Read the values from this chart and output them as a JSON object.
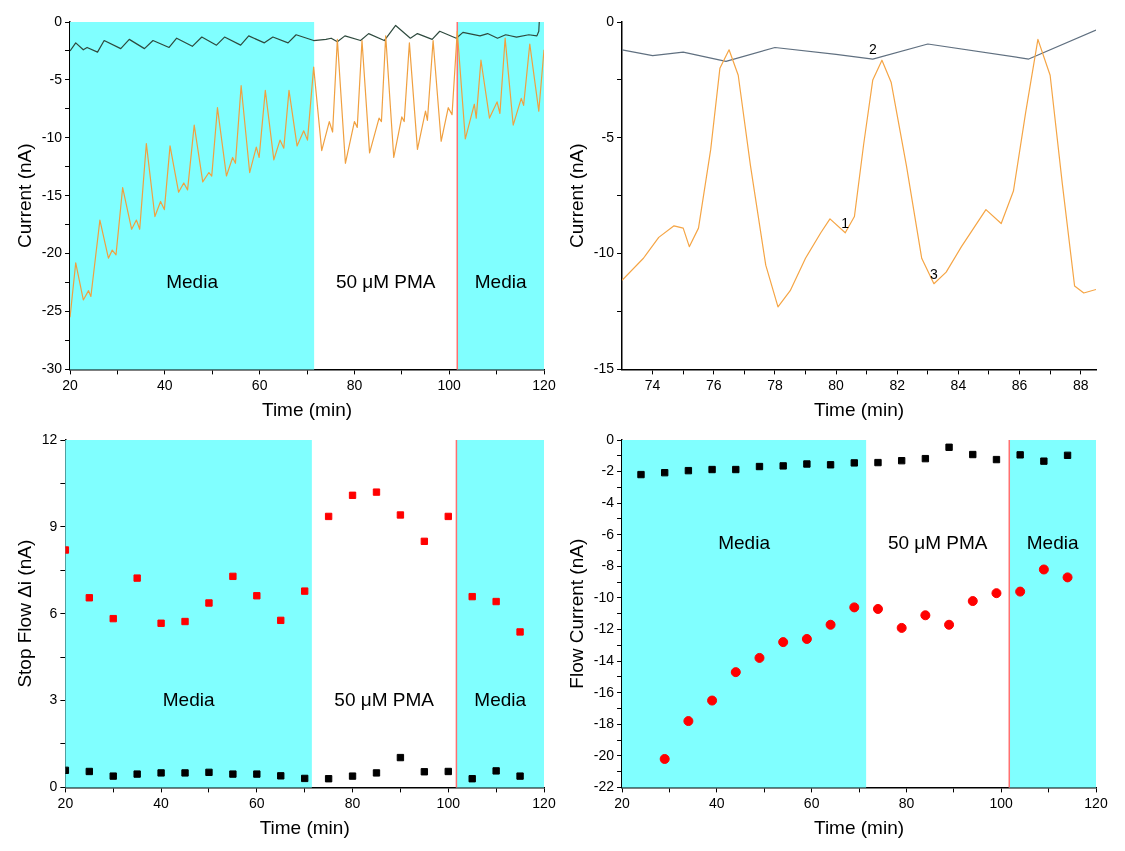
{
  "chart_data": [
    {
      "type": "line",
      "xlabel": "Time (min)",
      "ylabel": "Current (nA)",
      "xlim": [
        20,
        120
      ],
      "ylim": [
        -30,
        0
      ],
      "xticks": [
        20,
        {
          "value": 30,
          "label": null
        },
        40,
        {
          "value": 50,
          "label": null
        },
        60,
        {
          "value": 70,
          "label": null
        },
        80,
        {
          "value": 90,
          "label": null
        },
        100,
        {
          "value": 110,
          "label": null
        },
        120
      ],
      "yticks": [
        -30,
        {
          "value": -27.5,
          "label": null
        },
        -25,
        {
          "value": -22.5,
          "label": null
        },
        -20,
        {
          "value": -17.5,
          "label": null
        },
        -15,
        {
          "value": -12.5,
          "label": null
        },
        -10,
        {
          "value": -7.5,
          "label": null
        },
        -5,
        {
          "value": -2.5,
          "label": null
        },
        0
      ],
      "grid": false,
      "legend": false,
      "marker": "none",
      "line_style": "solid",
      "bands": [
        {
          "axis": "x",
          "from": 20,
          "to": 71.5,
          "color": "#80ffff",
          "label": "Media"
        },
        {
          "axis": "x",
          "from": 101.7,
          "to": 120,
          "color": "#80ffff",
          "label": "Media"
        }
      ],
      "ref_lines": [
        {
          "axis": "x",
          "value": 101.7,
          "color": "#ff7070"
        }
      ],
      "annotations": [
        "50 μM PMA"
      ],
      "series": [
        {
          "color": "#f0a040",
          "x": [
            20,
            21.2,
            22.8,
            23.9,
            24.4,
            26.3,
            28.1,
            28.9,
            29.7,
            31.1,
            33,
            34,
            34.7,
            36.1,
            37.9,
            39.1,
            39.9,
            41.1,
            42.9,
            44,
            44.8,
            46.2,
            48,
            49.3,
            49.9,
            51.1,
            53,
            54.3,
            54.9,
            56.1,
            57.9,
            59.3,
            59.9,
            61.2,
            63,
            64.3,
            65.1,
            66.2,
            67.9,
            69.3,
            70.1,
            71.4,
            73.1,
            74.7,
            75.4,
            76.4,
            78.1,
            80,
            80.6,
            81.6,
            83.2,
            85.2,
            85.7,
            86.6,
            88.3,
            90,
            90.5,
            91.6,
            93.3,
            95,
            95.4,
            96.6,
            98.3,
            99.8,
            100.6,
            101.7,
            103.4,
            105.3,
            105.7,
            106.7,
            108.5,
            110.1,
            110.7,
            111.8,
            113.5,
            115.2,
            115.7,
            117,
            118.9,
            120
          ],
          "values": [
            -25.5,
            -20.8,
            -24,
            -23.2,
            -23.7,
            -17.1,
            -20.4,
            -19.7,
            -20.1,
            -14.3,
            -17.9,
            -17.1,
            -17.9,
            -10.5,
            -16.8,
            -15.5,
            -16.2,
            -10.7,
            -14.7,
            -13.9,
            -14.5,
            -8.9,
            -13.8,
            -13,
            -13.3,
            -7.4,
            -13.3,
            -11.7,
            -12.2,
            -5.5,
            -13,
            -10.8,
            -11.7,
            -5.9,
            -11.9,
            -10.2,
            -10.9,
            -5.9,
            -10.7,
            -9.4,
            -10.2,
            -3.9,
            -11.1,
            -8.6,
            -9.5,
            -1.5,
            -12.2,
            -8.6,
            -9.1,
            -1.6,
            -11.3,
            -8.3,
            -8.6,
            -1.2,
            -11.7,
            -8.2,
            -8.6,
            -1.8,
            -11,
            -7.7,
            -8.5,
            -1.6,
            -10.3,
            -7.4,
            -8,
            -0.8,
            -10.1,
            -7.1,
            -8.3,
            -3.3,
            -8.3,
            -6.9,
            -7.9,
            -1.4,
            -8.9,
            -6.6,
            -7.2,
            -1.9,
            -7.7,
            -2.4
          ]
        },
        {
          "color": "#2e4a3e",
          "x": [
            20,
            21.2,
            22.8,
            23.6,
            25.8,
            27.2,
            30.7,
            32.5,
            35.7,
            37.5,
            40.9,
            42.5,
            45.8,
            47.8,
            50.9,
            52.6,
            56,
            57.7,
            61,
            62.8,
            66,
            67.7,
            71.4,
            74,
            75.1,
            76.4,
            78,
            81.3,
            83,
            86.3,
            88.7,
            91.8,
            93.3,
            96.4,
            98,
            101.5,
            102.9,
            106.5,
            108.1,
            110.2,
            111.9,
            114.2,
            116.8,
            118.5,
            118.9,
            119
          ],
          "values": [
            -2.5,
            -1.8,
            -2.4,
            -2.2,
            -2.6,
            -1.6,
            -2.3,
            -1.5,
            -2.3,
            -1.6,
            -2.2,
            -1.4,
            -2.1,
            -1.3,
            -2,
            -1.3,
            -2,
            -1.2,
            -1.8,
            -1.3,
            -1.8,
            -1.1,
            -1.6,
            -1.5,
            -1.4,
            -1.7,
            -1.2,
            -1.6,
            -1,
            -1.6,
            -0.3,
            -1.4,
            -1,
            -1.5,
            -0.8,
            -1.4,
            -0.9,
            -1.2,
            -1,
            -1.4,
            -1.1,
            -1.3,
            -1.1,
            -1.2,
            -0.8,
            0
          ]
        }
      ]
    },
    {
      "type": "line",
      "xlabel": "Time (min)",
      "ylabel": "Current (nA)",
      "xlim": [
        73,
        88.5
      ],
      "ylim": [
        -15,
        0
      ],
      "xticks": [
        74,
        {
          "value": 75,
          "label": null
        },
        76,
        {
          "value": 77,
          "label": null
        },
        78,
        {
          "value": 79,
          "label": null
        },
        80,
        {
          "value": 81,
          "label": null
        },
        82,
        {
          "value": 83,
          "label": null
        },
        84,
        {
          "value": 85,
          "label": null
        },
        86,
        {
          "value": 87,
          "label": null
        },
        88
      ],
      "yticks": [
        -15,
        {
          "value": -12.5,
          "label": null
        },
        -10,
        {
          "value": -7.5,
          "label": null
        },
        -5,
        {
          "value": -2.5,
          "label": null
        },
        0
      ],
      "grid": false,
      "legend": false,
      "marker": "none",
      "line_style": "solid",
      "annotations": [
        {
          "text": "1",
          "x": 80.3,
          "y": -9.1
        },
        {
          "text": "2",
          "x": 81.2,
          "y": -1.6
        },
        {
          "text": "3",
          "x": 83.2,
          "y": -11.3
        }
      ],
      "series": [
        {
          "color": "#f5a545",
          "x": [
            73,
            73.7,
            74.2,
            74.7,
            75,
            75.2,
            75.5,
            75.9,
            76.2,
            76.5,
            76.8,
            77.2,
            77.7,
            78.1,
            78.5,
            79,
            79.5,
            79.8,
            80.3,
            80.6,
            80.9,
            81.2,
            81.5,
            81.8,
            82.3,
            82.8,
            83.2,
            83.6,
            84.1,
            84.9,
            85.4,
            85.8,
            86.2,
            86.6,
            87,
            87.4,
            87.8,
            88.1,
            88.5
          ],
          "values": [
            -11.15,
            -10.2,
            -9.3,
            -8.8,
            -8.9,
            -9.7,
            -8.9,
            -5.5,
            -2,
            -1.2,
            -2.3,
            -6.2,
            -10.5,
            -12.3,
            -11.6,
            -10.2,
            -9.1,
            -8.5,
            -9.1,
            -8.4,
            -5.3,
            -2.5,
            -1.65,
            -2.6,
            -6.2,
            -10.2,
            -11.3,
            -10.8,
            -9.7,
            -8.1,
            -8.7,
            -7.3,
            -3.9,
            -0.75,
            -2.3,
            -7,
            -11.4,
            -11.7,
            -11.55
          ]
        },
        {
          "color": "#607080",
          "x": [
            73,
            74,
            75,
            76.4,
            78,
            80,
            81.2,
            83,
            86.3,
            88.5
          ],
          "values": [
            -1.2,
            -1.45,
            -1.3,
            -1.7,
            -1.1,
            -1.4,
            -1.6,
            -0.95,
            -1.6,
            -0.35
          ]
        }
      ]
    },
    {
      "type": "scatter",
      "xlabel": "Time (min)",
      "ylabel": "Stop Flow Δi (nA)",
      "xlim": [
        20,
        120
      ],
      "ylim": [
        0,
        12
      ],
      "xticks": [
        20,
        {
          "value": 30,
          "label": null
        },
        40,
        {
          "value": 50,
          "label": null
        },
        60,
        {
          "value": 70,
          "label": null
        },
        80,
        {
          "value": 90,
          "label": null
        },
        100,
        {
          "value": 110,
          "label": null
        },
        120
      ],
      "yticks": [
        0,
        {
          "value": 1.5,
          "label": null
        },
        3,
        {
          "value": 4.5,
          "label": null
        },
        6,
        {
          "value": 7.5,
          "label": null
        },
        9,
        {
          "value": 10.5,
          "label": null
        },
        12
      ],
      "grid": false,
      "legend": false,
      "marker": "square",
      "bands": [
        {
          "axis": "x",
          "from": 20,
          "to": 71.5,
          "color": "#80ffff",
          "label": "Media"
        },
        {
          "axis": "x",
          "from": 101.7,
          "to": 120,
          "color": "#80ffff",
          "label": "Media"
        }
      ],
      "ref_lines": [
        {
          "axis": "x",
          "value": 101.7,
          "color": "#ff7070"
        }
      ],
      "annotations": [
        "50 μM PMA"
      ],
      "series": [
        {
          "color": "#ff0000",
          "x": [
            20,
            25,
            30,
            35,
            40,
            45,
            50,
            55,
            60,
            65,
            70,
            75,
            80,
            85,
            90,
            95,
            100,
            105,
            110,
            115
          ],
          "values": [
            8.2,
            6.55,
            5.83,
            7.23,
            5.67,
            5.73,
            6.37,
            7.29,
            6.62,
            5.77,
            6.78,
            9.36,
            10.09,
            10.2,
            9.41,
            8.5,
            9.36,
            6.59,
            6.42,
            5.37
          ]
        },
        {
          "color": "#000000",
          "x": [
            20,
            25,
            30,
            35,
            40,
            45,
            50,
            55,
            60,
            65,
            70,
            75,
            80,
            85,
            90,
            95,
            100,
            105,
            110,
            115
          ],
          "values": [
            0.59,
            0.55,
            0.39,
            0.46,
            0.5,
            0.5,
            0.52,
            0.46,
            0.46,
            0.4,
            0.31,
            0.3,
            0.39,
            0.5,
            1.03,
            0.54,
            0.55,
            0.3,
            0.57,
            0.39
          ]
        }
      ]
    },
    {
      "type": "scatter",
      "xlabel": "Time (min)",
      "ylabel": "Flow Current (nA)",
      "xlim": [
        20,
        120
      ],
      "ylim": [
        -22,
        0
      ],
      "xticks": [
        20,
        {
          "value": 30,
          "label": null
        },
        40,
        {
          "value": 50,
          "label": null
        },
        60,
        {
          "value": 70,
          "label": null
        },
        80,
        {
          "value": 90,
          "label": null
        },
        100,
        {
          "value": 110,
          "label": null
        },
        120
      ],
      "yticks": [
        -22,
        {
          "value": -21,
          "label": null
        },
        -20,
        {
          "value": -19,
          "label": null
        },
        -18,
        {
          "value": -17,
          "label": null
        },
        -16,
        {
          "value": -15,
          "label": null
        },
        -14,
        {
          "value": -13,
          "label": null
        },
        -12,
        {
          "value": -11,
          "label": null
        },
        -10,
        {
          "value": -9,
          "label": null
        },
        -8,
        {
          "value": -7,
          "label": null
        },
        -6,
        {
          "value": -5,
          "label": null
        },
        -4,
        {
          "value": -3,
          "label": null
        },
        -2,
        {
          "value": -1,
          "label": null
        },
        0
      ],
      "grid": false,
      "legend": false,
      "bands": [
        {
          "axis": "x",
          "from": 20,
          "to": 71.5,
          "color": "#80ffff",
          "label": "Media"
        },
        {
          "axis": "x",
          "from": 101.7,
          "to": 120,
          "color": "#80ffff",
          "label": "Media"
        }
      ],
      "ref_lines": [
        {
          "axis": "x",
          "value": 101.7,
          "color": "#ff7070"
        }
      ],
      "annotations": [
        "50 μM PMA"
      ],
      "series": [
        {
          "color": "#000000",
          "marker": "square",
          "x": [
            24,
            29,
            34,
            39,
            44,
            49,
            54,
            59,
            64,
            69,
            74,
            79,
            84,
            89,
            94,
            99,
            104,
            109,
            114
          ],
          "values": [
            -2.19,
            -2.07,
            -1.94,
            -1.87,
            -1.87,
            -1.68,
            -1.64,
            -1.52,
            -1.57,
            -1.45,
            -1.43,
            -1.31,
            -1.18,
            -0.46,
            -0.92,
            -1.24,
            -0.94,
            -1.34,
            -0.97
          ]
        },
        {
          "color": "#ff0000",
          "marker": "circle",
          "x": [
            29,
            34,
            39,
            44,
            49,
            54,
            59,
            64,
            69,
            74,
            79,
            84,
            89,
            94,
            99,
            104,
            109,
            114
          ],
          "values": [
            -20.2,
            -17.8,
            -16.5,
            -14.7,
            -13.8,
            -12.8,
            -12.6,
            -11.7,
            -10.6,
            -10.7,
            -11.9,
            -11.1,
            -11.7,
            -10.2,
            -9.7,
            -9.6,
            -8.2,
            -8.7
          ]
        }
      ]
    }
  ]
}
